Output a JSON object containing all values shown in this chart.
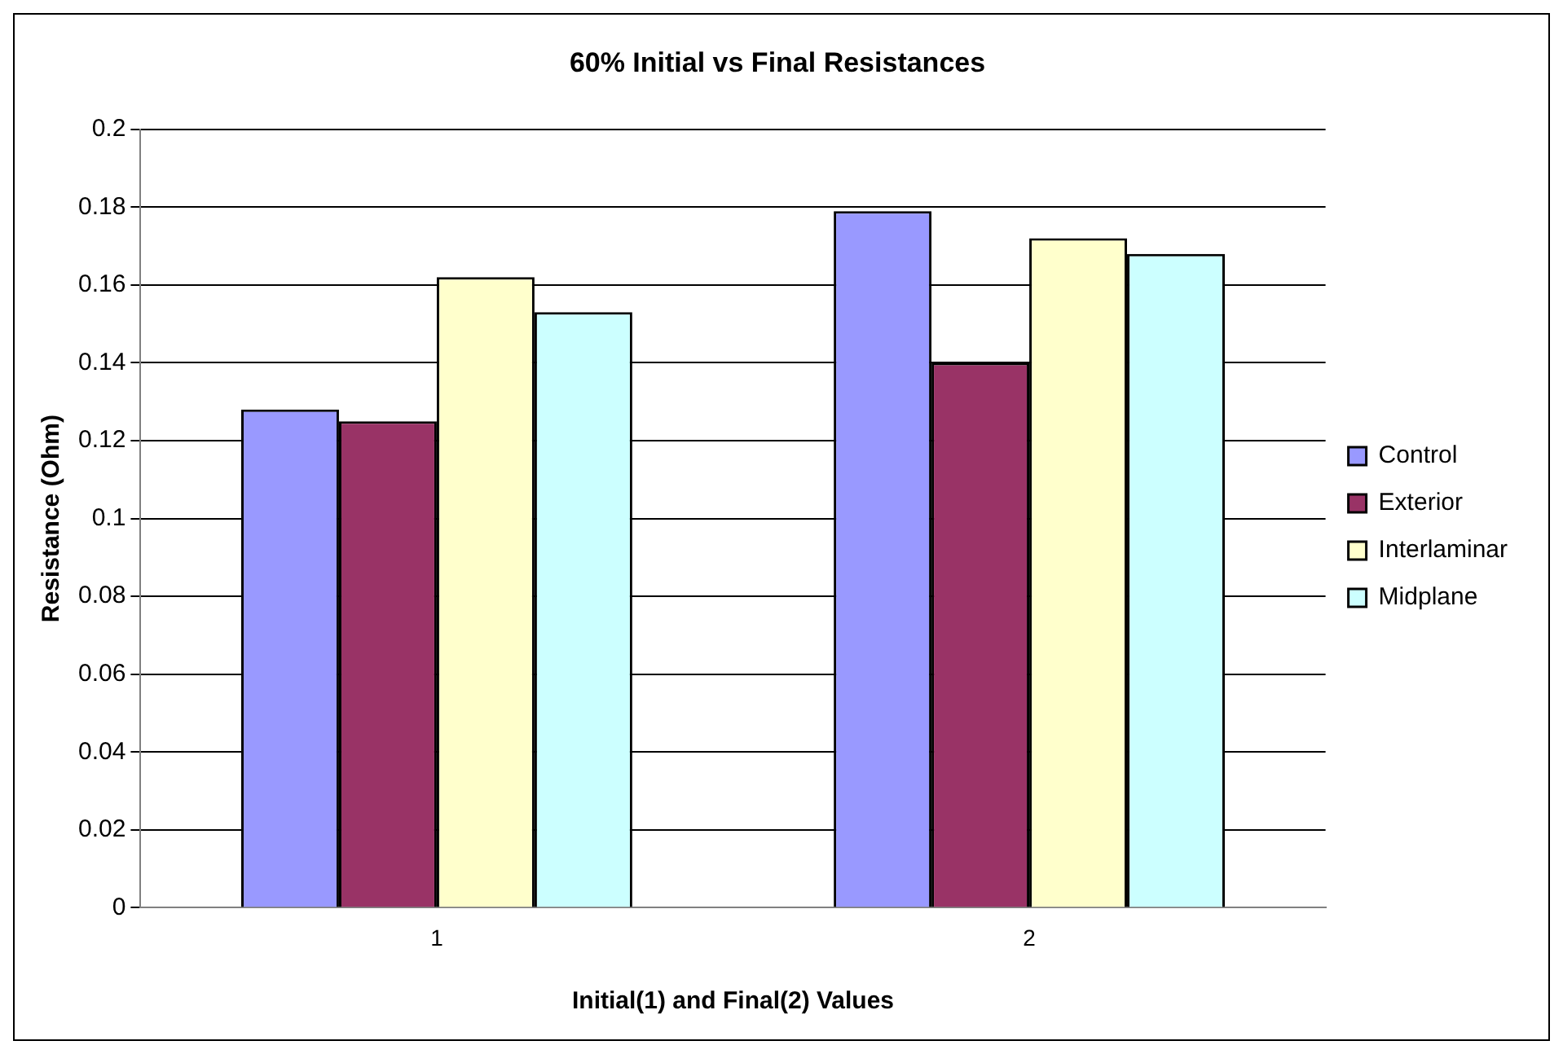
{
  "chart_data": {
    "type": "bar",
    "title": "60% Initial vs Final Resistances",
    "xlabel": "Initial(1) and Final(2) Values",
    "ylabel": "Resistance (Ohm)",
    "categories": [
      "1",
      "2"
    ],
    "series": [
      {
        "name": "Control",
        "color": "#9999ff",
        "values": [
          0.128,
          0.179
        ]
      },
      {
        "name": "Exterior",
        "color": "#993366",
        "values": [
          0.125,
          0.14
        ]
      },
      {
        "name": "Interlaminar",
        "color": "#ffffcc",
        "values": [
          0.162,
          0.172
        ]
      },
      {
        "name": "Midplane",
        "color": "#ccffff",
        "values": [
          0.153,
          0.168
        ]
      }
    ],
    "ylim": [
      0,
      0.2
    ],
    "yticks": [
      0,
      0.02,
      0.04,
      0.06,
      0.08,
      0.1,
      0.12,
      0.14,
      0.16,
      0.18,
      0.2
    ],
    "grid": "y",
    "legend": "right"
  }
}
